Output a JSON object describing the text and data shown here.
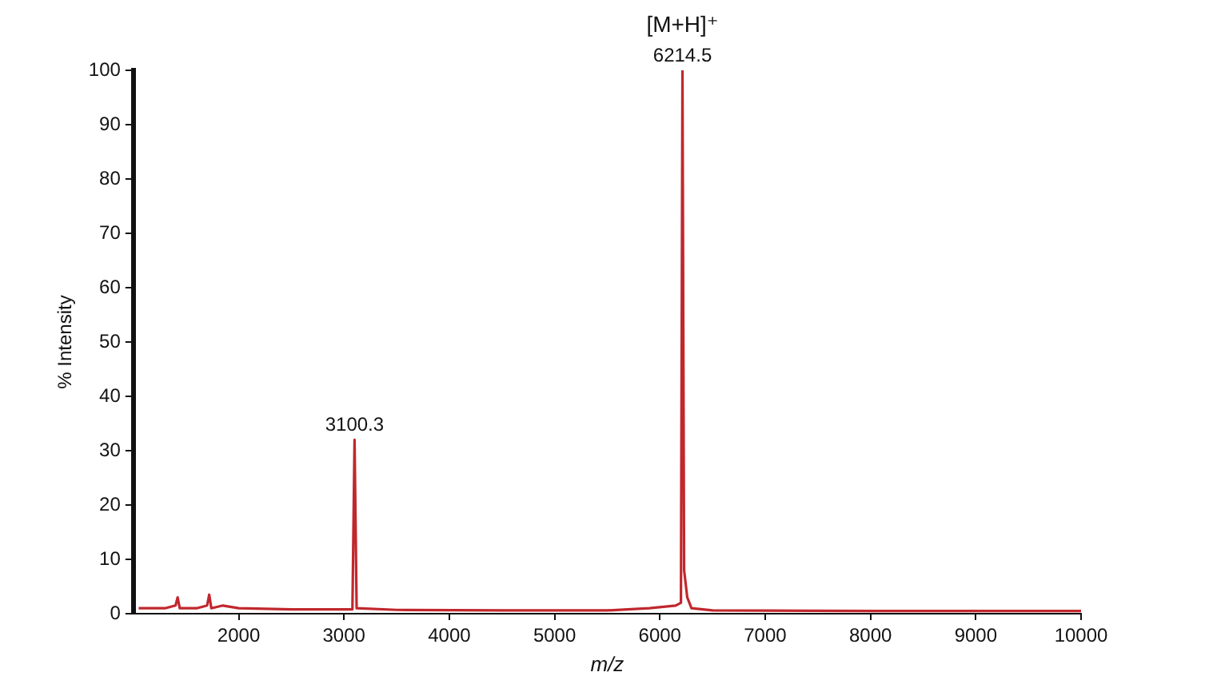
{
  "chart_data": {
    "type": "line",
    "xlabel": "m/z",
    "ylabel": "% Intensity",
    "series": [
      {
        "color": "#c0282d",
        "x": [
          1050,
          1300,
          1400,
          1420,
          1440,
          1600,
          1700,
          1720,
          1740,
          1850,
          2000,
          2500,
          3080,
          3100.3,
          3120,
          3500,
          4500,
          5500,
          5900,
          6150,
          6200,
          6214.5,
          6230,
          6260,
          6300,
          6500,
          8000,
          10000
        ],
        "values": [
          1,
          1,
          1.5,
          3,
          1,
          1,
          1.5,
          3.5,
          1,
          1.5,
          1,
          0.8,
          0.8,
          32,
          1,
          0.7,
          0.6,
          0.6,
          1,
          1.5,
          2,
          100,
          8,
          3,
          1,
          0.6,
          0.5,
          0.5
        ]
      }
    ],
    "xlim": [
      1000,
      10000
    ],
    "xticks": [
      2000,
      3000,
      4000,
      5000,
      6000,
      7000,
      8000,
      9000,
      10000
    ],
    "ylim": [
      0,
      100
    ],
    "yticks": [
      0,
      10,
      20,
      30,
      40,
      50,
      60,
      70,
      80,
      90,
      100
    ],
    "grid": false,
    "legend": false,
    "marker": "none",
    "line_style": "solid",
    "annotations": [
      {
        "text": "3100.3",
        "x": 3100.3,
        "y": 32
      },
      {
        "text": "6214.5",
        "x": 6214.5,
        "y": 100
      },
      "[M+H]⁺"
    ]
  }
}
